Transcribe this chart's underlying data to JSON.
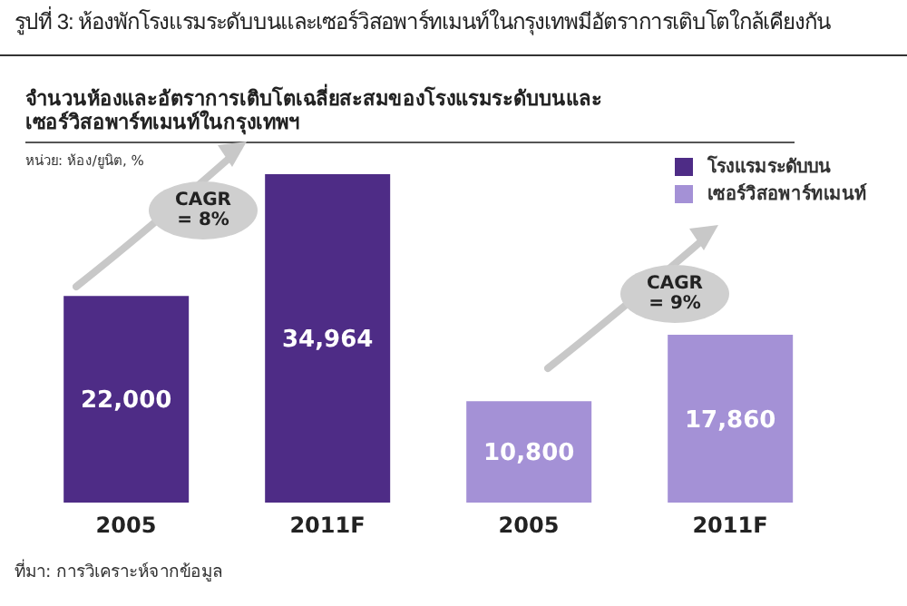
{
  "chart_data": {
    "type": "bar",
    "title": "รูปที่ 3: ห้องพักโรงแรมระดับบนและเซอร์วิสอพาร์ทเมนท์ในกรุงเทพมีอัตราการเติบโตใกล้เคียงกัน",
    "subtitle": "จำนวนห้องและอัตราการเติบโตเฉลี่ยสะสมของโรงแรมระดับบนและเซอร์วิสอพาร์ทเมนท์ในกรุงเทพฯ",
    "ylabel": "หน่วย: ห้อง/ยูนิต, %",
    "categories": [
      "2005",
      "2011F",
      "2005",
      "2011F"
    ],
    "series": [
      {
        "name": "โรงแรมระดับบน",
        "color": "#4e2c86",
        "values": [
          22000,
          34964,
          null,
          null
        ],
        "value_labels": [
          "22,000",
          "34,964",
          null,
          null
        ]
      },
      {
        "name": "เซอร์วิสอพาร์ทเมนท์",
        "color": "#a491d6",
        "values": [
          null,
          null,
          10800,
          17860
        ],
        "value_labels": [
          null,
          null,
          "10,800",
          "17,860"
        ]
      }
    ],
    "stacked": true,
    "legend": "top right",
    "annotations": [
      "CAGR = 8%",
      "CAGR = 9%",
      "ที่มา: การวิเคราะห์จากข้อมูล"
    ]
  }
}
